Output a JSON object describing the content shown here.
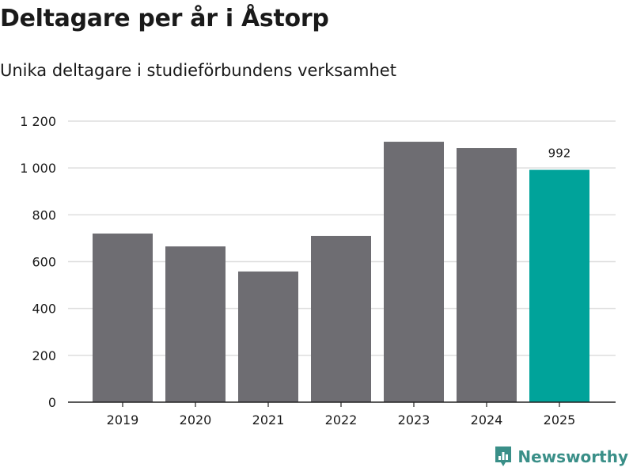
{
  "header": {
    "title": "Deltagare per år i Åstorp",
    "subtitle": "Unika deltagare i studieförbundens verksamhet"
  },
  "brand": {
    "name": "Newsworthy",
    "color": "#3a8f88"
  },
  "colors": {
    "bar": "#6e6d72",
    "highlight": "#00a39a",
    "grid": "#dedede",
    "axis": "#222222",
    "text": "#1a1a1a"
  },
  "chart_data": {
    "type": "bar",
    "categories": [
      "2019",
      "2020",
      "2021",
      "2022",
      "2023",
      "2024",
      "2025"
    ],
    "values": [
      720,
      665,
      558,
      710,
      1112,
      1085,
      992
    ],
    "highlight_index": 6,
    "data_labels": [
      {
        "index": 6,
        "text": "992"
      }
    ],
    "yticks": [
      0,
      200,
      400,
      600,
      800,
      1000,
      1200
    ],
    "ytick_labels": [
      "0",
      "200",
      "400",
      "600",
      "800",
      "1 000",
      "1 200"
    ],
    "ylim": [
      0,
      1200
    ],
    "grid": true,
    "title": "Deltagare per år i Åstorp",
    "subtitle": "Unika deltagare i studieförbundens verksamhet",
    "xlabel": "",
    "ylabel": ""
  }
}
